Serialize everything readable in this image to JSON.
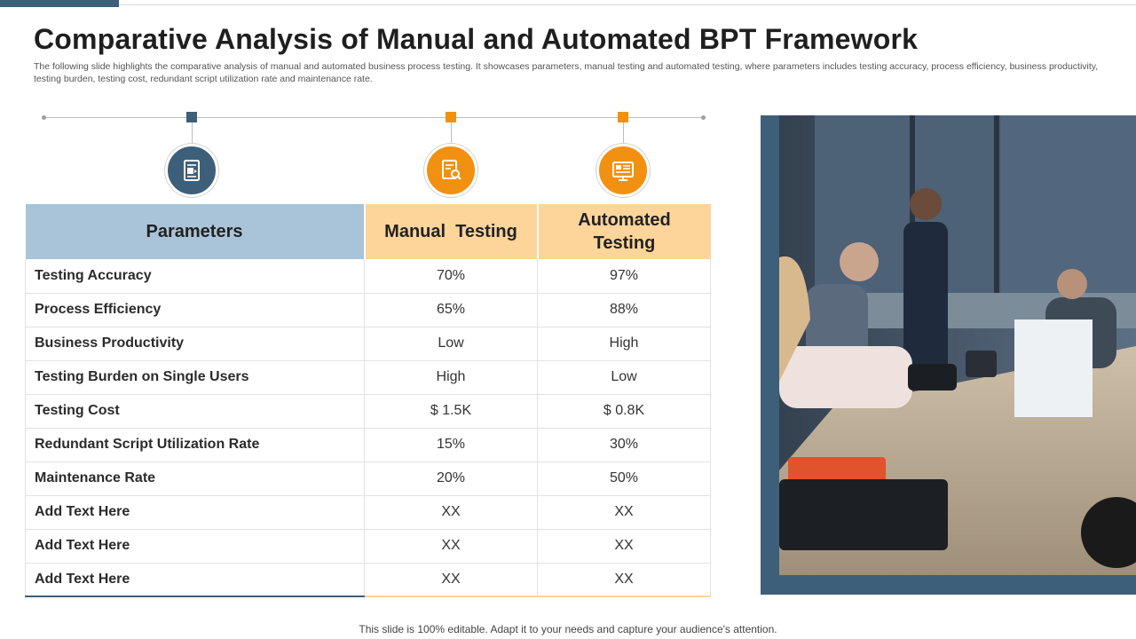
{
  "title": "Comparative Analysis of Manual and Automated BPT Framework",
  "subtitle": "The following slide highlights the comparative analysis of manual and automated business process testing. It showcases parameters, manual testing and automated testing, where parameters includes testing accuracy, process efficiency,  business productivity, testing burden, testing cost, redundant script utilization rate and maintenance rate.",
  "colors": {
    "accent_blue": "#3d5f7a",
    "accent_orange": "#f29111",
    "header_blue": "#a9c4d8",
    "header_orange": "#fdd49a"
  },
  "icons": [
    "document-icon",
    "document-search-icon",
    "dashboard-icon"
  ],
  "table": {
    "headers": [
      "Parameters",
      "Manual  Testing",
      "Automated Testing"
    ],
    "rows": [
      [
        "Testing Accuracy",
        "70%",
        "97%"
      ],
      [
        "Process Efficiency",
        "65%",
        "88%"
      ],
      [
        "Business Productivity",
        "Low",
        "High"
      ],
      [
        "Testing Burden on Single Users",
        "High",
        "Low"
      ],
      [
        "Testing Cost",
        "$ 1.5K",
        "$ 0.8K"
      ],
      [
        "Redundant Script Utilization Rate",
        "15%",
        "30%"
      ],
      [
        "Maintenance Rate",
        "20%",
        "50%"
      ],
      [
        "Add Text Here",
        "XX",
        "XX"
      ],
      [
        "Add Text Here",
        "XX",
        "XX"
      ],
      [
        "Add Text Here",
        "XX",
        "XX"
      ]
    ]
  },
  "footer": "This slide is 100% editable. Adapt it to your needs and capture your audience's attention."
}
